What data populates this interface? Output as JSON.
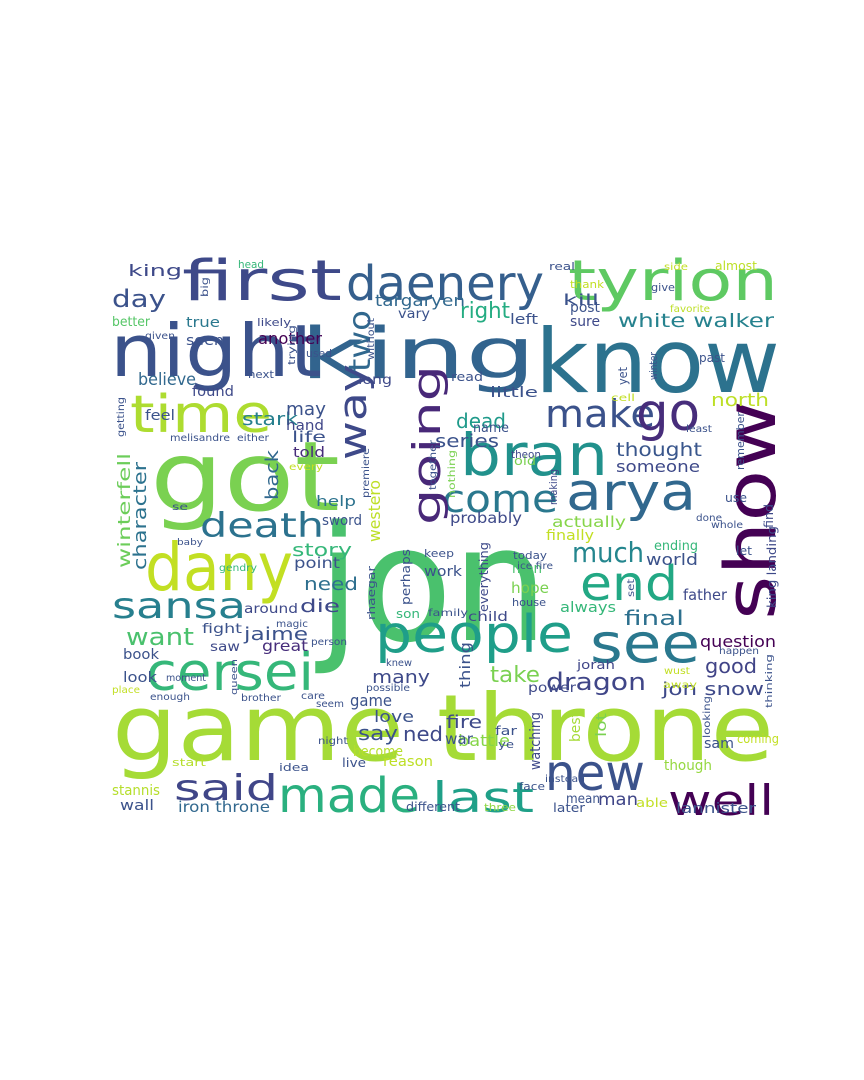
{
  "words": [
    {
      "text": "game throne",
      "color": "#a5db36"
    },
    {
      "text": "jon",
      "color": "#4ac16d"
    },
    {
      "text": "know",
      "color": "#2c728e"
    },
    {
      "text": "king",
      "color": "#32648e"
    },
    {
      "text": "night",
      "color": "#3b528b"
    },
    {
      "text": "got",
      "color": "#7ad151"
    },
    {
      "text": "show",
      "color": "#440154"
    },
    {
      "text": "first",
      "color": "#3e4989"
    },
    {
      "text": "tyrion",
      "color": "#5ec962"
    },
    {
      "text": "daenery",
      "color": "#355f8d"
    },
    {
      "text": "time",
      "color": "#addc30"
    },
    {
      "text": "bran",
      "color": "#21918c"
    },
    {
      "text": "dany",
      "color": "#c2df23"
    },
    {
      "text": "arya",
      "color": "#31688e"
    },
    {
      "text": "people",
      "color": "#1f9e89"
    },
    {
      "text": "see",
      "color": "#2a788e"
    },
    {
      "text": "cersei",
      "color": "#35b779"
    },
    {
      "text": "end",
      "color": "#22a884"
    },
    {
      "text": "made",
      "color": "#2ab07f"
    },
    {
      "text": "new",
      "color": "#3b528b"
    },
    {
      "text": "well",
      "color": "#440154"
    },
    {
      "text": "last",
      "color": "#1fa088"
    },
    {
      "text": "said",
      "color": "#404688"
    },
    {
      "text": "sansa",
      "color": "#277f8e"
    },
    {
      "text": "death",
      "color": "#2c728e"
    },
    {
      "text": "come",
      "color": "#2a788e"
    },
    {
      "text": "make",
      "color": "#3b528b"
    },
    {
      "text": "go",
      "color": "#472d7b"
    },
    {
      "text": "going",
      "color": "#482878"
    },
    {
      "text": "way",
      "color": "#3e4989"
    },
    {
      "text": "two",
      "color": "#31688e"
    },
    {
      "text": "dragon",
      "color": "#404688"
    },
    {
      "text": "much",
      "color": "#24868e"
    },
    {
      "text": "want",
      "color": "#4ac16d"
    },
    {
      "text": "day",
      "color": "#3b528b"
    },
    {
      "text": "king",
      "color": "#3e4989"
    },
    {
      "text": "white walker",
      "color": "#26828e"
    },
    {
      "text": "right",
      "color": "#25ac82"
    },
    {
      "text": "targaryen",
      "color": "#31688e"
    },
    {
      "text": "kill",
      "color": "#3b528b"
    },
    {
      "text": "jon snow",
      "color": "#3e4989"
    },
    {
      "text": "good",
      "color": "#414487"
    },
    {
      "text": "thought",
      "color": "#39568c"
    },
    {
      "text": "someone",
      "color": "#3e4989"
    },
    {
      "text": "final",
      "color": "#2d708e"
    },
    {
      "text": "series",
      "color": "#3b528b"
    },
    {
      "text": "dead",
      "color": "#1f9a8a"
    },
    {
      "text": "character",
      "color": "#2c728e"
    },
    {
      "text": "stark",
      "color": "#277f8e"
    },
    {
      "text": "believe",
      "color": "#31688e"
    },
    {
      "text": "winterfell",
      "color": "#6ccd5a"
    },
    {
      "text": "back",
      "color": "#31688e"
    },
    {
      "text": "may",
      "color": "#3b528b"
    },
    {
      "text": "north",
      "color": "#bddf26"
    },
    {
      "text": "story",
      "color": "#35b779"
    },
    {
      "text": "need",
      "color": "#2e6f8e"
    },
    {
      "text": "die",
      "color": "#3e4989"
    },
    {
      "text": "jaime",
      "color": "#3b528b"
    },
    {
      "text": "many",
      "color": "#3e4989"
    },
    {
      "text": "take",
      "color": "#7ad151"
    },
    {
      "text": "question",
      "color": "#440154"
    },
    {
      "text": "iron throne",
      "color": "#31688e"
    },
    {
      "text": "lannister",
      "color": "#3b528b"
    },
    {
      "text": "man",
      "color": "#404688"
    },
    {
      "text": "wall",
      "color": "#3b528b"
    },
    {
      "text": "battle",
      "color": "#86d549"
    },
    {
      "text": "ned",
      "color": "#3e4989"
    },
    {
      "text": "say",
      "color": "#3b528b"
    },
    {
      "text": "love",
      "color": "#3b528b"
    },
    {
      "text": "fire",
      "color": "#3e4989"
    },
    {
      "text": "war",
      "color": "#3b528b"
    },
    {
      "text": "game",
      "color": "#3b528b"
    },
    {
      "text": "sam",
      "color": "#3b528b"
    },
    {
      "text": "though",
      "color": "#95d840"
    },
    {
      "text": "stannis",
      "color": "#b5de2b"
    },
    {
      "text": "better",
      "color": "#56c667"
    },
    {
      "text": "true",
      "color": "#2a788e"
    },
    {
      "text": "seen",
      "color": "#3b528b"
    },
    {
      "text": "another",
      "color": "#440154"
    },
    {
      "text": "found",
      "color": "#3e4989"
    },
    {
      "text": "feel",
      "color": "#3b528b"
    },
    {
      "text": "hand",
      "color": "#404688"
    },
    {
      "text": "life",
      "color": "#3b528b"
    },
    {
      "text": "told",
      "color": "#472d7b"
    },
    {
      "text": "help",
      "color": "#2c728e"
    },
    {
      "text": "sword",
      "color": "#3b528b"
    },
    {
      "text": "westero",
      "color": "#bddf26"
    },
    {
      "text": "probably",
      "color": "#3e4989"
    },
    {
      "text": "actually",
      "color": "#86d549"
    },
    {
      "text": "finally",
      "color": "#c2df23"
    },
    {
      "text": "ending",
      "color": "#35b779"
    },
    {
      "text": "world",
      "color": "#3b528b"
    },
    {
      "text": "father",
      "color": "#3e4989"
    },
    {
      "text": "always",
      "color": "#35b779"
    },
    {
      "text": "hope",
      "color": "#7ad151"
    },
    {
      "text": "men",
      "color": "#4ac16d"
    },
    {
      "text": "work",
      "color": "#3b528b"
    },
    {
      "text": "point",
      "color": "#3b528b"
    },
    {
      "text": "around",
      "color": "#3e4989"
    },
    {
      "text": "fight",
      "color": "#3b528b"
    },
    {
      "text": "great",
      "color": "#472d7b"
    },
    {
      "text": "saw",
      "color": "#3e4989"
    },
    {
      "text": "look",
      "color": "#3b528b"
    },
    {
      "text": "book",
      "color": "#3b528b"
    },
    {
      "text": "thing",
      "color": "#3b528b"
    },
    {
      "text": "power",
      "color": "#3e4989"
    },
    {
      "text": "jorah",
      "color": "#404688"
    },
    {
      "text": "become",
      "color": "#b5de2b"
    },
    {
      "text": "reason",
      "color": "#bddf26"
    },
    {
      "text": "live",
      "color": "#3b528b"
    },
    {
      "text": "idea",
      "color": "#3b528b"
    },
    {
      "text": "start",
      "color": "#b5de2b"
    },
    {
      "text": "watching",
      "color": "#3e4989"
    },
    {
      "text": "best",
      "color": "#a5db36"
    },
    {
      "text": "lot",
      "color": "#7ad151"
    },
    {
      "text": "mean",
      "color": "#3b528b"
    },
    {
      "text": "different",
      "color": "#3b528b"
    },
    {
      "text": "three",
      "color": "#8fd744"
    },
    {
      "text": "later",
      "color": "#3b528b"
    },
    {
      "text": "able",
      "color": "#c2df23"
    },
    {
      "text": "coming",
      "color": "#c2df23"
    },
    {
      "text": "little",
      "color": "#3b528b"
    },
    {
      "text": "read",
      "color": "#3b528b"
    },
    {
      "text": "long",
      "color": "#3e4989"
    },
    {
      "text": "used",
      "color": "#3b528b"
    },
    {
      "text": "next",
      "color": "#3b528b"
    },
    {
      "text": "likely",
      "color": "#3e4989"
    },
    {
      "text": "vary",
      "color": "#3b528b"
    },
    {
      "text": "left",
      "color": "#3b528b"
    },
    {
      "text": "post",
      "color": "#3b528b"
    },
    {
      "text": "sure",
      "color": "#3e4989"
    },
    {
      "text": "real",
      "color": "#3b528b"
    },
    {
      "text": "thank",
      "color": "#c2df23"
    },
    {
      "text": "give",
      "color": "#3b528b"
    },
    {
      "text": "favorite",
      "color": "#bddf26"
    },
    {
      "text": "almost",
      "color": "#bddf26"
    },
    {
      "text": "side",
      "color": "#c2df23"
    },
    {
      "text": "head",
      "color": "#35b779"
    },
    {
      "text": "past",
      "color": "#3b528b"
    },
    {
      "text": "winter",
      "color": "#3b528b"
    },
    {
      "text": "yet",
      "color": "#3b528b"
    },
    {
      "text": "cell",
      "color": "#c2df23"
    },
    {
      "text": "least",
      "color": "#3b528b"
    },
    {
      "text": "remember",
      "color": "#3b528b"
    },
    {
      "text": "name",
      "color": "#3b528b"
    },
    {
      "text": "old",
      "color": "#7ad151"
    },
    {
      "text": "theon",
      "color": "#3e4989"
    },
    {
      "text": "making",
      "color": "#3e4989"
    },
    {
      "text": "done",
      "color": "#3b528b"
    },
    {
      "text": "use",
      "color": "#3b528b"
    },
    {
      "text": "whole",
      "color": "#3b528b"
    },
    {
      "text": "find",
      "color": "#3e4989"
    },
    {
      "text": "king landing",
      "color": "#3e4989"
    },
    {
      "text": "let",
      "color": "#3b528b"
    },
    {
      "text": "today",
      "color": "#3b528b"
    },
    {
      "text": "ice fire",
      "color": "#3b528b"
    },
    {
      "text": "house",
      "color": "#3b528b"
    },
    {
      "text": "set",
      "color": "#3b528b"
    },
    {
      "text": "keep",
      "color": "#3b528b"
    },
    {
      "text": "everything",
      "color": "#3e4989"
    },
    {
      "text": "perhaps",
      "color": "#3b528b"
    },
    {
      "text": "son",
      "color": "#35b779"
    },
    {
      "text": "family",
      "color": "#3b528b"
    },
    {
      "text": "child",
      "color": "#3e4989"
    },
    {
      "text": "rhaegar",
      "color": "#3b528b"
    },
    {
      "text": "magic",
      "color": "#3b528b"
    },
    {
      "text": "person",
      "color": "#3b528b"
    },
    {
      "text": "knew",
      "color": "#3b528b"
    },
    {
      "text": "possible",
      "color": "#3b528b"
    },
    {
      "text": "care",
      "color": "#3b528b"
    },
    {
      "text": "brother",
      "color": "#3b528b"
    },
    {
      "text": "enough",
      "color": "#3b528b"
    },
    {
      "text": "place",
      "color": "#c2df23"
    },
    {
      "text": "queen",
      "color": "#3b528b"
    },
    {
      "text": "moment",
      "color": "#3b528b"
    },
    {
      "text": "baby",
      "color": "#3b528b"
    },
    {
      "text": "gendry",
      "color": "#35b779"
    },
    {
      "text": "se",
      "color": "#3b528b"
    },
    {
      "text": "getting",
      "color": "#3b528b"
    },
    {
      "text": "melisandre",
      "color": "#3b528b"
    },
    {
      "text": "either",
      "color": "#3b528b"
    },
    {
      "text": "every",
      "color": "#c2df23"
    },
    {
      "text": "premiere",
      "color": "#3b528b"
    },
    {
      "text": "together",
      "color": "#3b528b"
    },
    {
      "text": "nothing",
      "color": "#7ad151"
    },
    {
      "text": "trying",
      "color": "#3b528b"
    },
    {
      "text": "without",
      "color": "#3b528b"
    },
    {
      "text": "big",
      "color": "#3b528b"
    },
    {
      "text": "given",
      "color": "#3b528b"
    },
    {
      "text": "far",
      "color": "#3b528b"
    },
    {
      "text": "ye",
      "color": "#3b528b"
    },
    {
      "text": "face",
      "color": "#3b528b"
    },
    {
      "text": "instead",
      "color": "#3b528b"
    },
    {
      "text": "away",
      "color": "#c2df23"
    },
    {
      "text": "happen",
      "color": "#3b528b"
    },
    {
      "text": "thinking",
      "color": "#3b528b"
    },
    {
      "text": "looking",
      "color": "#3b528b"
    },
    {
      "text": "wust",
      "color": "#c2df23"
    },
    {
      "text": "night",
      "color": "#3b528b"
    },
    {
      "text": "seem",
      "color": "#3b528b"
    }
  ]
}
